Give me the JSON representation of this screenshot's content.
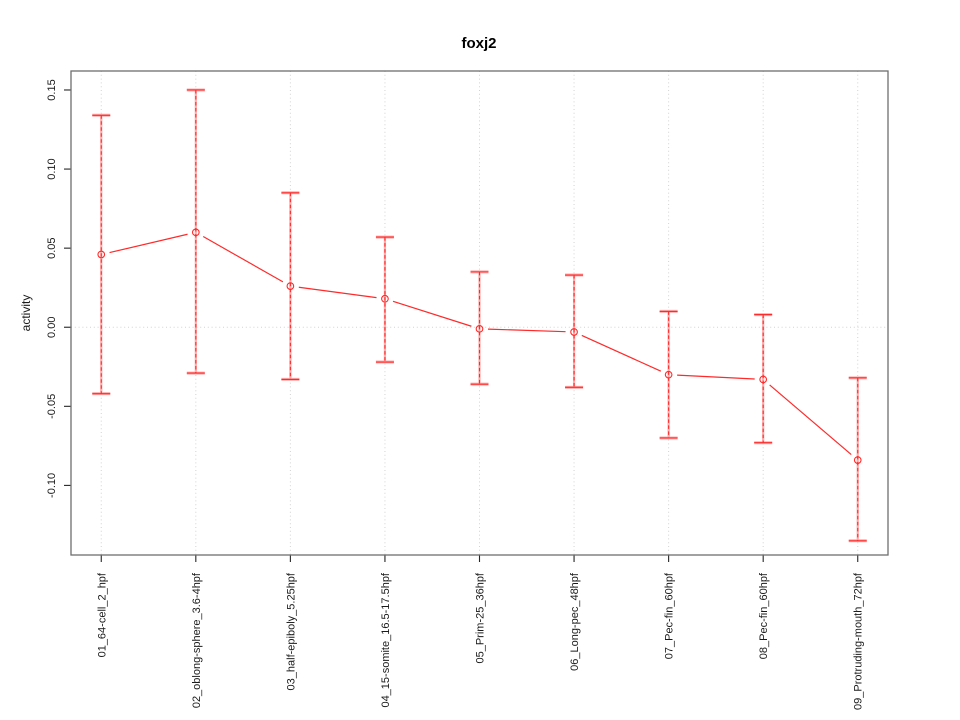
{
  "chart_data": {
    "type": "line",
    "title": "foxj2",
    "xlabel": "",
    "ylabel": "activity",
    "categories": [
      "01_64-cell_2_hpf",
      "02_oblong-sphere_3.6-4hpf",
      "03_half-epiboly_5.25hpf",
      "04_15-somite_16.5-17.5hpf",
      "05_Prim-25_36hpf",
      "06_Long-pec_48hpf",
      "07_Pec-fin_60hpf",
      "08_Pec-fin_60hpf",
      "09_Protruding-mouth_72hpf"
    ],
    "series": [
      {
        "name": "foxj2 activity",
        "values": [
          0.046,
          0.06,
          0.026,
          0.018,
          -0.001,
          -0.003,
          -0.03,
          -0.033,
          -0.084
        ],
        "upper": [
          0.134,
          0.15,
          0.085,
          0.057,
          0.035,
          0.033,
          0.01,
          0.008,
          -0.032
        ],
        "lower": [
          -0.042,
          -0.029,
          -0.033,
          -0.022,
          -0.036,
          -0.038,
          -0.07,
          -0.073,
          -0.135
        ]
      }
    ],
    "y_ticks": [
      "0.15",
      "0.10",
      "0.05",
      "0.00",
      "-0.05",
      "-0.10"
    ],
    "ylim": [
      -0.144,
      0.162
    ],
    "xlim": [
      0.68,
      9.32
    ],
    "grid": {
      "vertical_dotted_per_category": true,
      "horizontal_dotted_zero_line": true
    },
    "legend": "none",
    "marker": "open-circle",
    "colors": {
      "line": "#ff2a2a",
      "marker": "#ff2a2a",
      "error_bar_solid": "#ffabab",
      "error_bar_dashed": "#ff2a2a",
      "grid": "#d2d2d2",
      "frame": "#6e6e6e",
      "tick": "#262626",
      "text": "#1a1a1a",
      "background": "#ffffff"
    }
  }
}
